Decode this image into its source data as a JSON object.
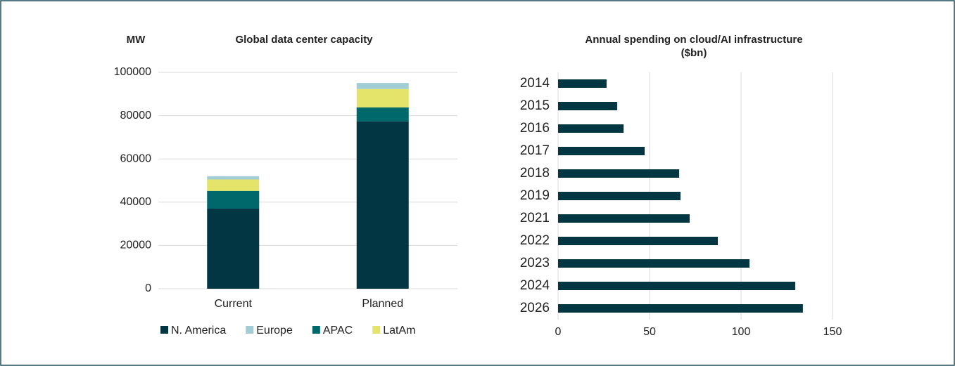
{
  "chart_data": [
    {
      "type": "stacked_bar",
      "title": "Global data center capacity",
      "y_label": "MW",
      "categories": [
        "Current",
        "Planned"
      ],
      "series": [
        {
          "name": "N. America",
          "color": "#023642",
          "values": [
            37000,
            77300
          ]
        },
        {
          "name": "Europe",
          "color": "#a3cdd5",
          "values": [
            1500,
            2800
          ]
        },
        {
          "name": "APAC",
          "color": "#00676b",
          "values": [
            8200,
            6500
          ]
        },
        {
          "name": "LatAm",
          "color": "#e4e46a",
          "values": [
            5300,
            8500
          ]
        }
      ],
      "ylim": [
        0,
        100000
      ],
      "yticks": [
        0,
        20000,
        40000,
        60000,
        80000,
        100000
      ],
      "grid": true,
      "legend": "bottom"
    },
    {
      "type": "hbar",
      "title": [
        "Annual spending on cloud/AI infrastructure",
        "($bn)"
      ],
      "categories": [
        "2014",
        "2015",
        "2016",
        "2017",
        "2018",
        "2019",
        "2021",
        "2022",
        "2023",
        "2024",
        "2026"
      ],
      "values": [
        26.5,
        32.3,
        35.8,
        47.3,
        66.2,
        66.9,
        71.9,
        87.3,
        104.6,
        129.6,
        133.8
      ],
      "color": "#023642",
      "xlim": [
        0,
        150
      ],
      "xticks": [
        0,
        50,
        100,
        150
      ],
      "grid": true
    }
  ]
}
